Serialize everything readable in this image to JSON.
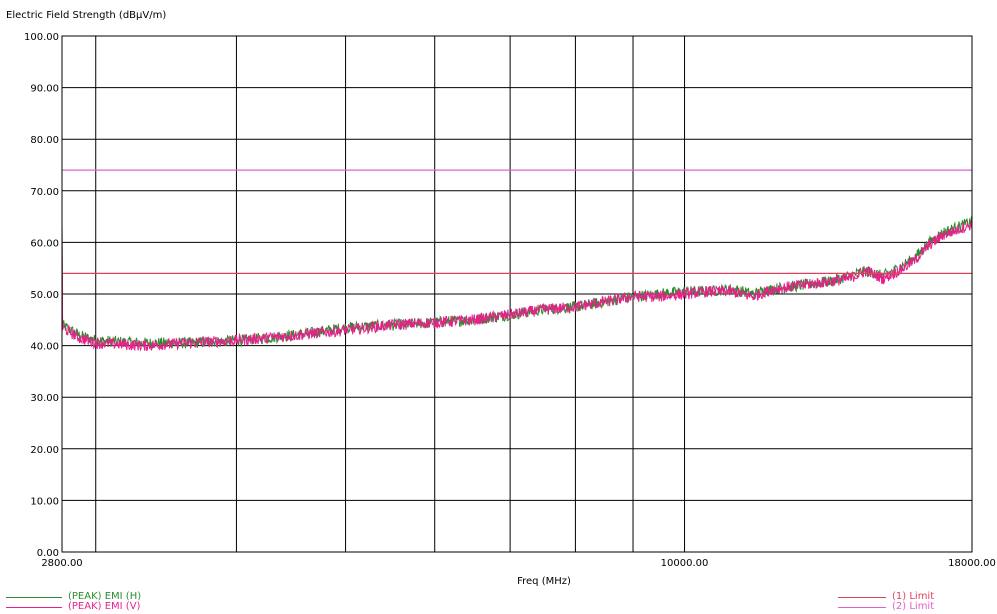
{
  "colors": {
    "peak_h": "#2e8b2e",
    "peak_v": "#e8208c",
    "limit_1": "#e04060",
    "limit_2": "#e060d0",
    "grid": "#000000"
  },
  "chart_data": {
    "type": "line",
    "title": "",
    "ylabel": "Electric Field Strength (dBμV/m)",
    "xlabel": "Freq (MHz)",
    "x_scale": "log",
    "xlim": [
      2800,
      18000
    ],
    "ylim": [
      0,
      100
    ],
    "x_tick_labels": [
      "2800.00",
      "10000.00",
      "18000.00"
    ],
    "x_gridlines": [
      3000,
      4000,
      5000,
      6000,
      7000,
      8000,
      9000,
      10000
    ],
    "y_ticks": [
      0,
      10,
      20,
      30,
      40,
      50,
      60,
      70,
      80,
      90,
      100
    ],
    "y_tick_labels": [
      "0.00",
      "10.00",
      "20.00",
      "30.00",
      "40.00",
      "50.00",
      "60.00",
      "70.00",
      "80.00",
      "90.00",
      "100.00"
    ],
    "grid": true,
    "legend_placement": "bottom",
    "series": [
      {
        "name": "(PEAK) EMI (H)",
        "x": [
          2800,
          2900,
          3000,
          3300,
          3600,
          4000,
          4500,
          5000,
          5500,
          6000,
          6500,
          7000,
          7500,
          8000,
          8500,
          9000,
          9500,
          10000,
          10500,
          11000,
          11500,
          12000,
          12500,
          13000,
          13500,
          14000,
          14500,
          15000,
          15500,
          16000,
          16500,
          17000,
          17500,
          18000
        ],
        "y": [
          44.0,
          42.0,
          41.0,
          40.5,
          40.5,
          41.0,
          42.0,
          43.5,
          44.0,
          44.5,
          45.0,
          46.0,
          47.0,
          47.5,
          48.5,
          49.5,
          50.0,
          50.5,
          50.5,
          51.0,
          50.0,
          51.0,
          51.5,
          52.0,
          52.5,
          53.5,
          54.5,
          53.5,
          55.0,
          57.0,
          60.0,
          62.0,
          63.0,
          64.0
        ],
        "color": "#2e8b2e"
      },
      {
        "name": "(PEAK) EMI (V)",
        "x": [
          2800,
          2900,
          3000,
          3300,
          3600,
          4000,
          4500,
          5000,
          5500,
          6000,
          6500,
          7000,
          7500,
          8000,
          8500,
          9000,
          9500,
          10000,
          10500,
          11000,
          11500,
          12000,
          12500,
          13000,
          13500,
          14000,
          14500,
          15000,
          15500,
          16000,
          16500,
          17000,
          17500,
          18000
        ],
        "y": [
          43.5,
          41.5,
          40.5,
          40.0,
          40.5,
          41.0,
          42.0,
          43.0,
          44.0,
          44.5,
          45.0,
          46.0,
          47.0,
          47.5,
          48.5,
          49.5,
          49.5,
          50.0,
          50.5,
          50.5,
          49.5,
          51.0,
          51.5,
          52.0,
          52.5,
          53.0,
          54.5,
          53.0,
          54.5,
          56.5,
          59.5,
          61.5,
          62.5,
          63.5
        ],
        "color": "#e8208c"
      },
      {
        "name": "(1) Limit",
        "x": [
          2800,
          18000
        ],
        "y": [
          54,
          54
        ],
        "color": "#e04060"
      },
      {
        "name": "(2) Limit",
        "x": [
          2800,
          18000
        ],
        "y": [
          74,
          74
        ],
        "color": "#e060d0"
      }
    ]
  },
  "legend": {
    "left": [
      "(PEAK) EMI (H)",
      "(PEAK) EMI (V)"
    ],
    "right": [
      "(1) Limit",
      "(2) Limit"
    ]
  }
}
